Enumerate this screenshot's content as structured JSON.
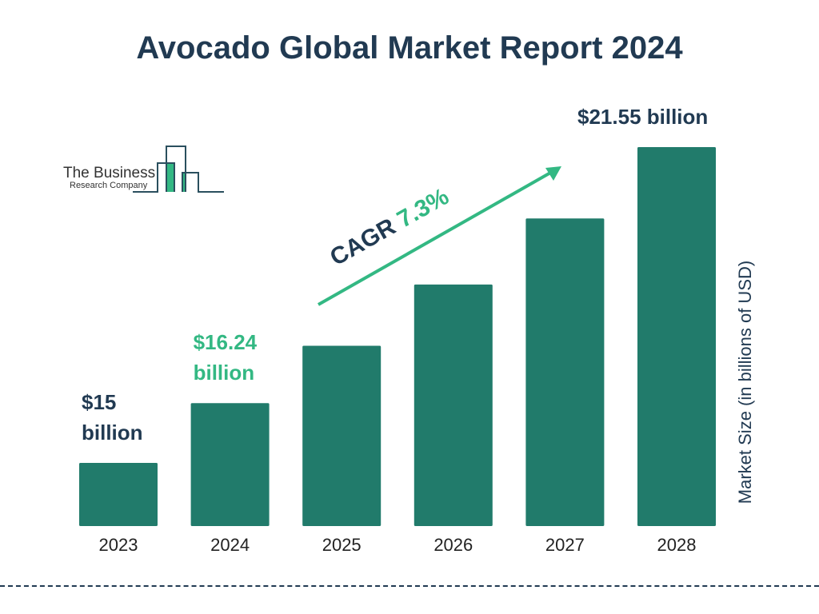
{
  "chart_data": {
    "type": "bar",
    "title": "Avocado Global Market Report 2024",
    "ylabel": "Market Size (in billions of USD)",
    "categories": [
      "2023",
      "2024",
      "2025",
      "2026",
      "2027",
      "2028"
    ],
    "values": [
      15,
      16.24,
      17.43,
      18.7,
      20.07,
      21.55
    ],
    "data_labels": {
      "2023": "$15 billion",
      "2024": "$16.24 billion",
      "2028": "$21.55 billion"
    },
    "label_lines": {
      "2023": [
        "$15",
        "billion"
      ],
      "2024": [
        "$16.24",
        "billion"
      ],
      "2028": [
        "$21.55 billion"
      ]
    },
    "annotation": {
      "prefix": "CAGR",
      "value": "7.3%"
    },
    "grid": false,
    "colors": {
      "bar": "#217b6b",
      "accent": "#33b883",
      "text": "#213a52"
    }
  },
  "logo": {
    "line1": "The Business",
    "line2": "Research Company"
  }
}
